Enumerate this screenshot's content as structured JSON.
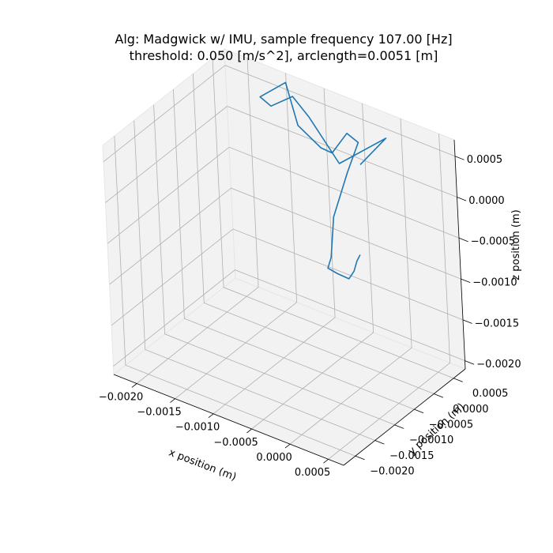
{
  "chart_data": {
    "type": "line",
    "projection": "3d",
    "title_lines": [
      "Alg: Madgwick w/ IMU, sample frequency 107.00 [Hz]",
      "threshold: 0.050 [m/s^2], arclength=0.0051 [m]"
    ],
    "xlabel": "x position (m)",
    "ylabel": "y position (m)",
    "zlabel": "z position (m)",
    "x_ticks": [
      "−0.0020",
      "−0.0015",
      "−0.0010",
      "−0.0005",
      "0.0000",
      "0.0005"
    ],
    "y_ticks": [
      "−0.0020",
      "−0.0015",
      "−0.0010",
      "−0.0005",
      "0.0000",
      "0.0005"
    ],
    "z_ticks": [
      "−0.0020",
      "−0.0015",
      "−0.0010",
      "−0.0005",
      "0.0000",
      "0.0005"
    ],
    "xlim": [
      -0.0023,
      0.0007
    ],
    "ylim": [
      -0.0023,
      0.0008
    ],
    "zlim": [
      -0.0021,
      0.0007
    ],
    "grid": true,
    "pane_color": "#f2f2f2",
    "series": [
      {
        "color": "#1f77b4",
        "points": [
          {
            "x": -0.00035,
            "y": 0.0004,
            "z": 0.00016
          },
          {
            "x": -0.0001,
            "y": 0.0006,
            "z": 0.0005
          },
          {
            "x": -0.0006,
            "y": 0.00035,
            "z": 0.0001
          },
          {
            "x": -0.001,
            "y": 0.0004,
            "z": 0.0005
          },
          {
            "x": -0.00125,
            "y": 0.00048,
            "z": 0.00063
          },
          {
            "x": -0.0015,
            "y": 0.0004,
            "z": 0.00045
          },
          {
            "x": -0.00165,
            "y": 0.00042,
            "z": 0.0005
          },
          {
            "x": -0.0014,
            "y": 0.0006,
            "z": 0.0007
          },
          {
            "x": -0.0011,
            "y": 0.0003,
            "z": 0.0004
          },
          {
            "x": -0.0007,
            "y": 0.0001,
            "z": 0.00035
          },
          {
            "x": -0.0005,
            "y": 0.0,
            "z": 0.0004
          },
          {
            "x": -0.0004,
            "y": 0.0002,
            "z": 0.0006
          },
          {
            "x": -0.0002,
            "y": 0.0001,
            "z": 0.0006
          },
          {
            "x": -0.0002,
            "y": -0.0002,
            "z": 0.00035
          },
          {
            "x": -0.00025,
            "y": -0.0005,
            "z": -0.0001
          },
          {
            "x": -0.0002,
            "y": -0.0007,
            "z": -0.0005
          },
          {
            "x": -0.00025,
            "y": -0.0007,
            "z": -0.00065
          },
          {
            "x": -0.00015,
            "y": -0.00065,
            "z": -0.0007
          },
          {
            "x": 5e-05,
            "y": -0.00075,
            "z": -0.00065
          },
          {
            "x": 0.00015,
            "y": -0.0008,
            "z": -0.0005
          },
          {
            "x": 0.00025,
            "y": -0.0009,
            "z": -0.0003
          },
          {
            "x": 0.00035,
            "y": -0.001,
            "z": -0.00015
          }
        ]
      }
    ]
  }
}
